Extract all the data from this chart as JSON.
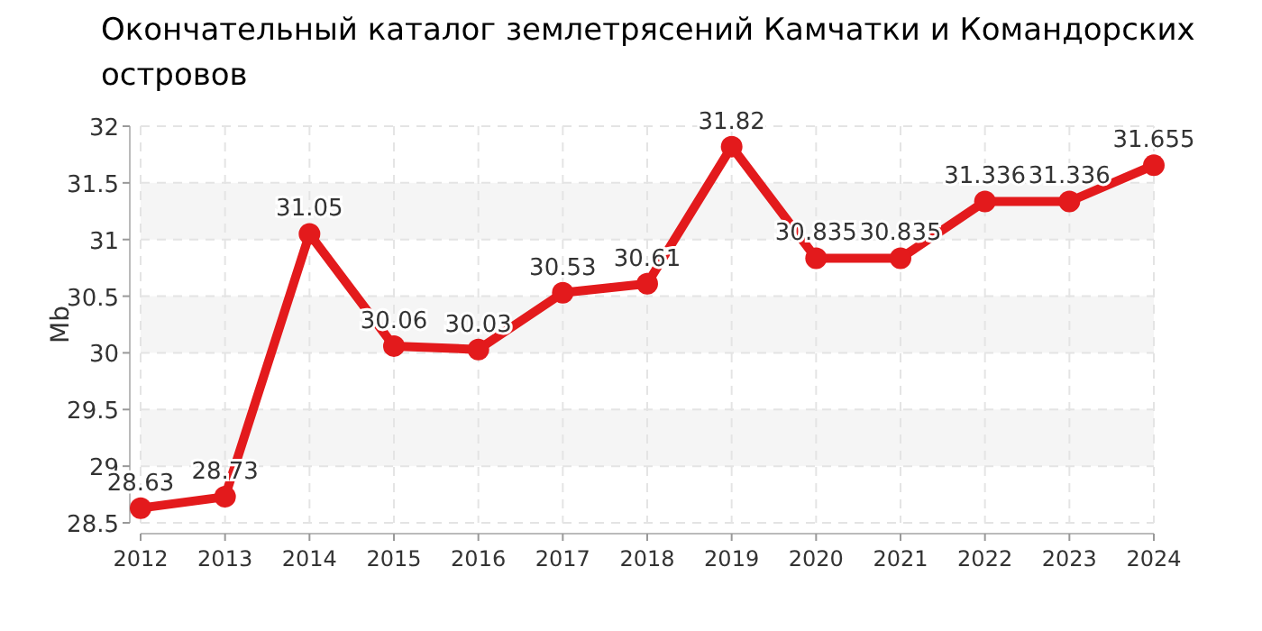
{
  "chart_data": {
    "type": "line",
    "title": "Окончательный каталог землетрясений Камчатки и Командорских островов",
    "ylabel": "Mb",
    "categories": [
      "2012",
      "2013",
      "2014",
      "2015",
      "2016",
      "2017",
      "2018",
      "2019",
      "2020",
      "2021",
      "2022",
      "2023",
      "2024"
    ],
    "series": [
      {
        "color": "#e31a1c",
        "values": [
          28.63,
          28.73,
          31.05,
          30.06,
          30.03,
          30.53,
          30.61,
          31.82,
          30.835,
          30.835,
          31.336,
          31.336,
          31.655
        ]
      }
    ],
    "ylim": [
      28.5,
      32
    ],
    "yticks": [
      28.5,
      29,
      29.5,
      30,
      30.5,
      31,
      31.5,
      32
    ],
    "grid": true,
    "marker": "circle",
    "line_style": "solid",
    "data_labels": true
  }
}
